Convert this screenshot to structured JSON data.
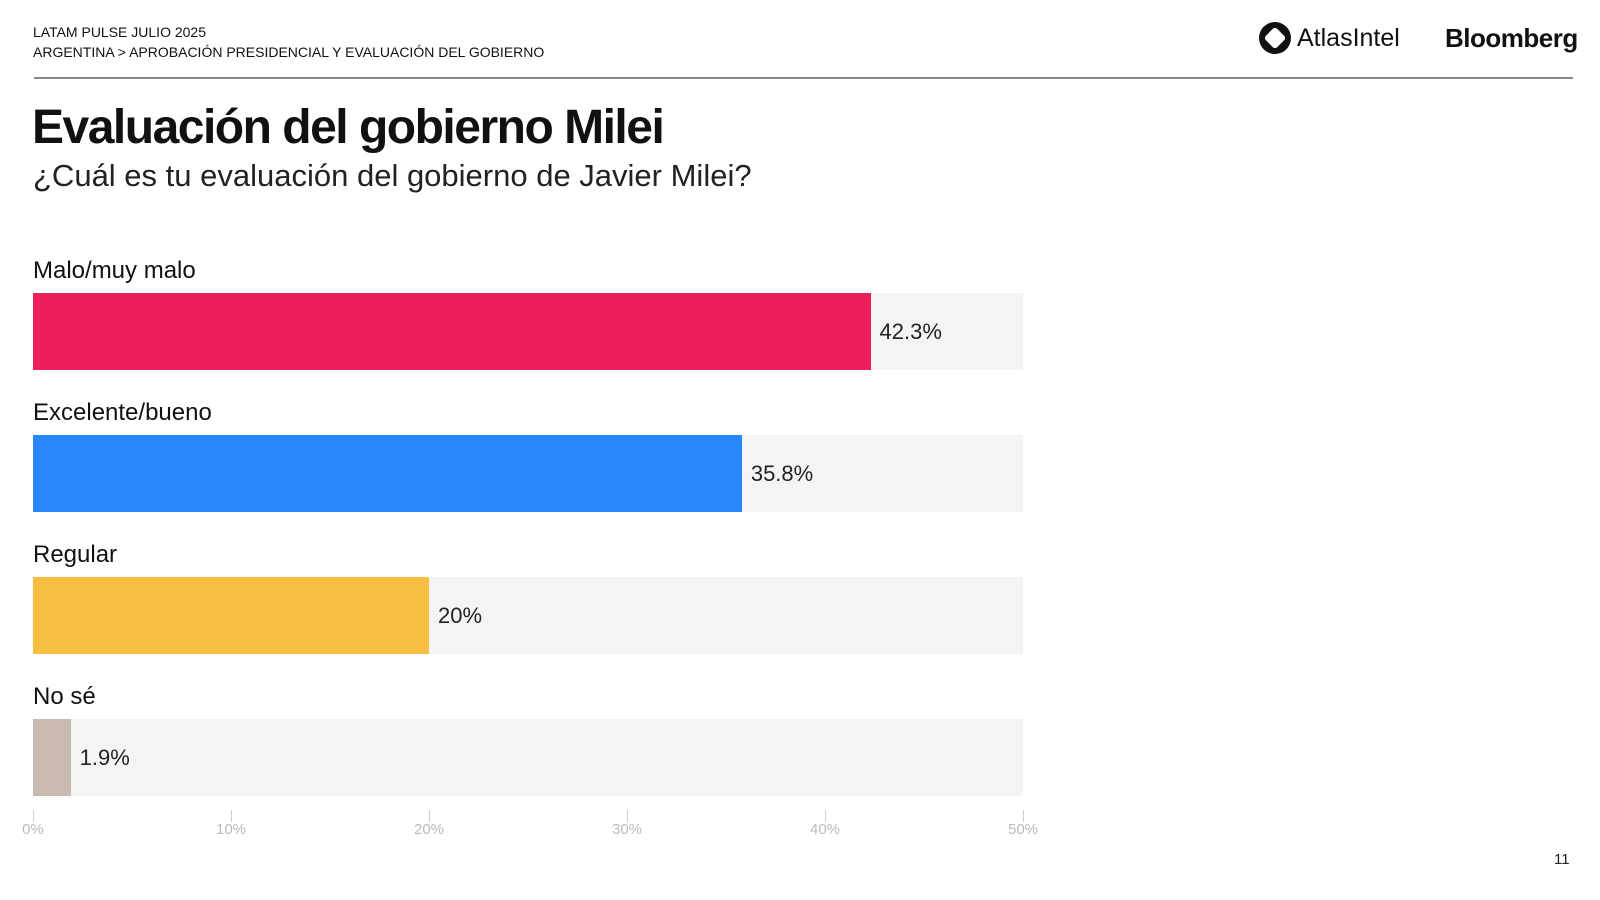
{
  "header": {
    "line1": "LATAM PULSE JULIO 2025",
    "line2": "ARGENTINA > APROBACIÓN PRESIDENCIAL Y EVALUACIÓN DEL GOBIERNO",
    "logo_atlas": "AtlasIntel",
    "logo_bloomberg": "Bloomberg"
  },
  "page_number": "11",
  "chart_data": {
    "type": "bar",
    "orientation": "horizontal",
    "title": "Evaluación del gobierno Milei",
    "subtitle": "¿Cuál es tu evaluación del gobierno de Javier Milei?",
    "categories": [
      "Malo/muy malo",
      "Excelente/bueno",
      "Regular",
      "No sé"
    ],
    "values": [
      42.3,
      35.8,
      20,
      1.9
    ],
    "value_labels": [
      "42.3%",
      "35.8%",
      "20%",
      "1.9%"
    ],
    "colors": [
      "#ec1e5c",
      "#2787fb",
      "#f6bf41",
      "#c9bbb1"
    ],
    "xlim": [
      0,
      50
    ],
    "xticks": [
      0,
      10,
      20,
      30,
      40,
      50
    ],
    "xtick_labels": [
      "0%",
      "10%",
      "20%",
      "30%",
      "40%",
      "50%"
    ],
    "grid": false,
    "xlabel": "",
    "ylabel": ""
  }
}
